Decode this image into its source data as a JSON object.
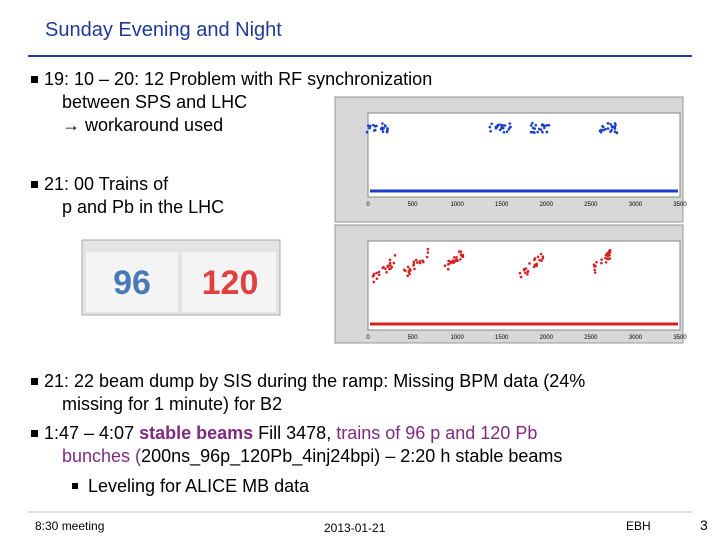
{
  "header": {
    "title": "Sunday Evening and Night"
  },
  "bullets": [
    {
      "lines": [
        "19: 10 – 20: 12 Problem with RF synchronization",
        "between SPS and LHC",
        "→ workaround used"
      ]
    },
    {
      "lines": [
        "21: 00 Trains of",
        "p and Pb in the LHC"
      ]
    },
    {
      "lines": [
        "21: 22 beam dump by SIS during the ramp: Missing BPM data (24%",
        "missing for 1 minute) for B2"
      ]
    },
    {
      "lines": [
        [
          "1:47 – 4:07 ",
          "stable beams",
          " Fill 3478, ",
          "trains of 96 p and 120 Pb"
        ],
        [
          "bunches (",
          "200ns_96p_120Pb_4inj24bpi) – 2:20 h stable beams"
        ]
      ]
    },
    {
      "lines": [
        "Leveling for ALICE MB data"
      ]
    }
  ],
  "counters": [
    "96",
    "120"
  ],
  "plots": {
    "xticks": [
      "0",
      "500",
      "1000",
      "1500",
      "2000",
      "2500",
      "3000",
      "3500"
    ]
  },
  "footer": {
    "left": "8:30 meeting",
    "center": "2013-01-21",
    "right": "EBH",
    "page": "3"
  }
}
